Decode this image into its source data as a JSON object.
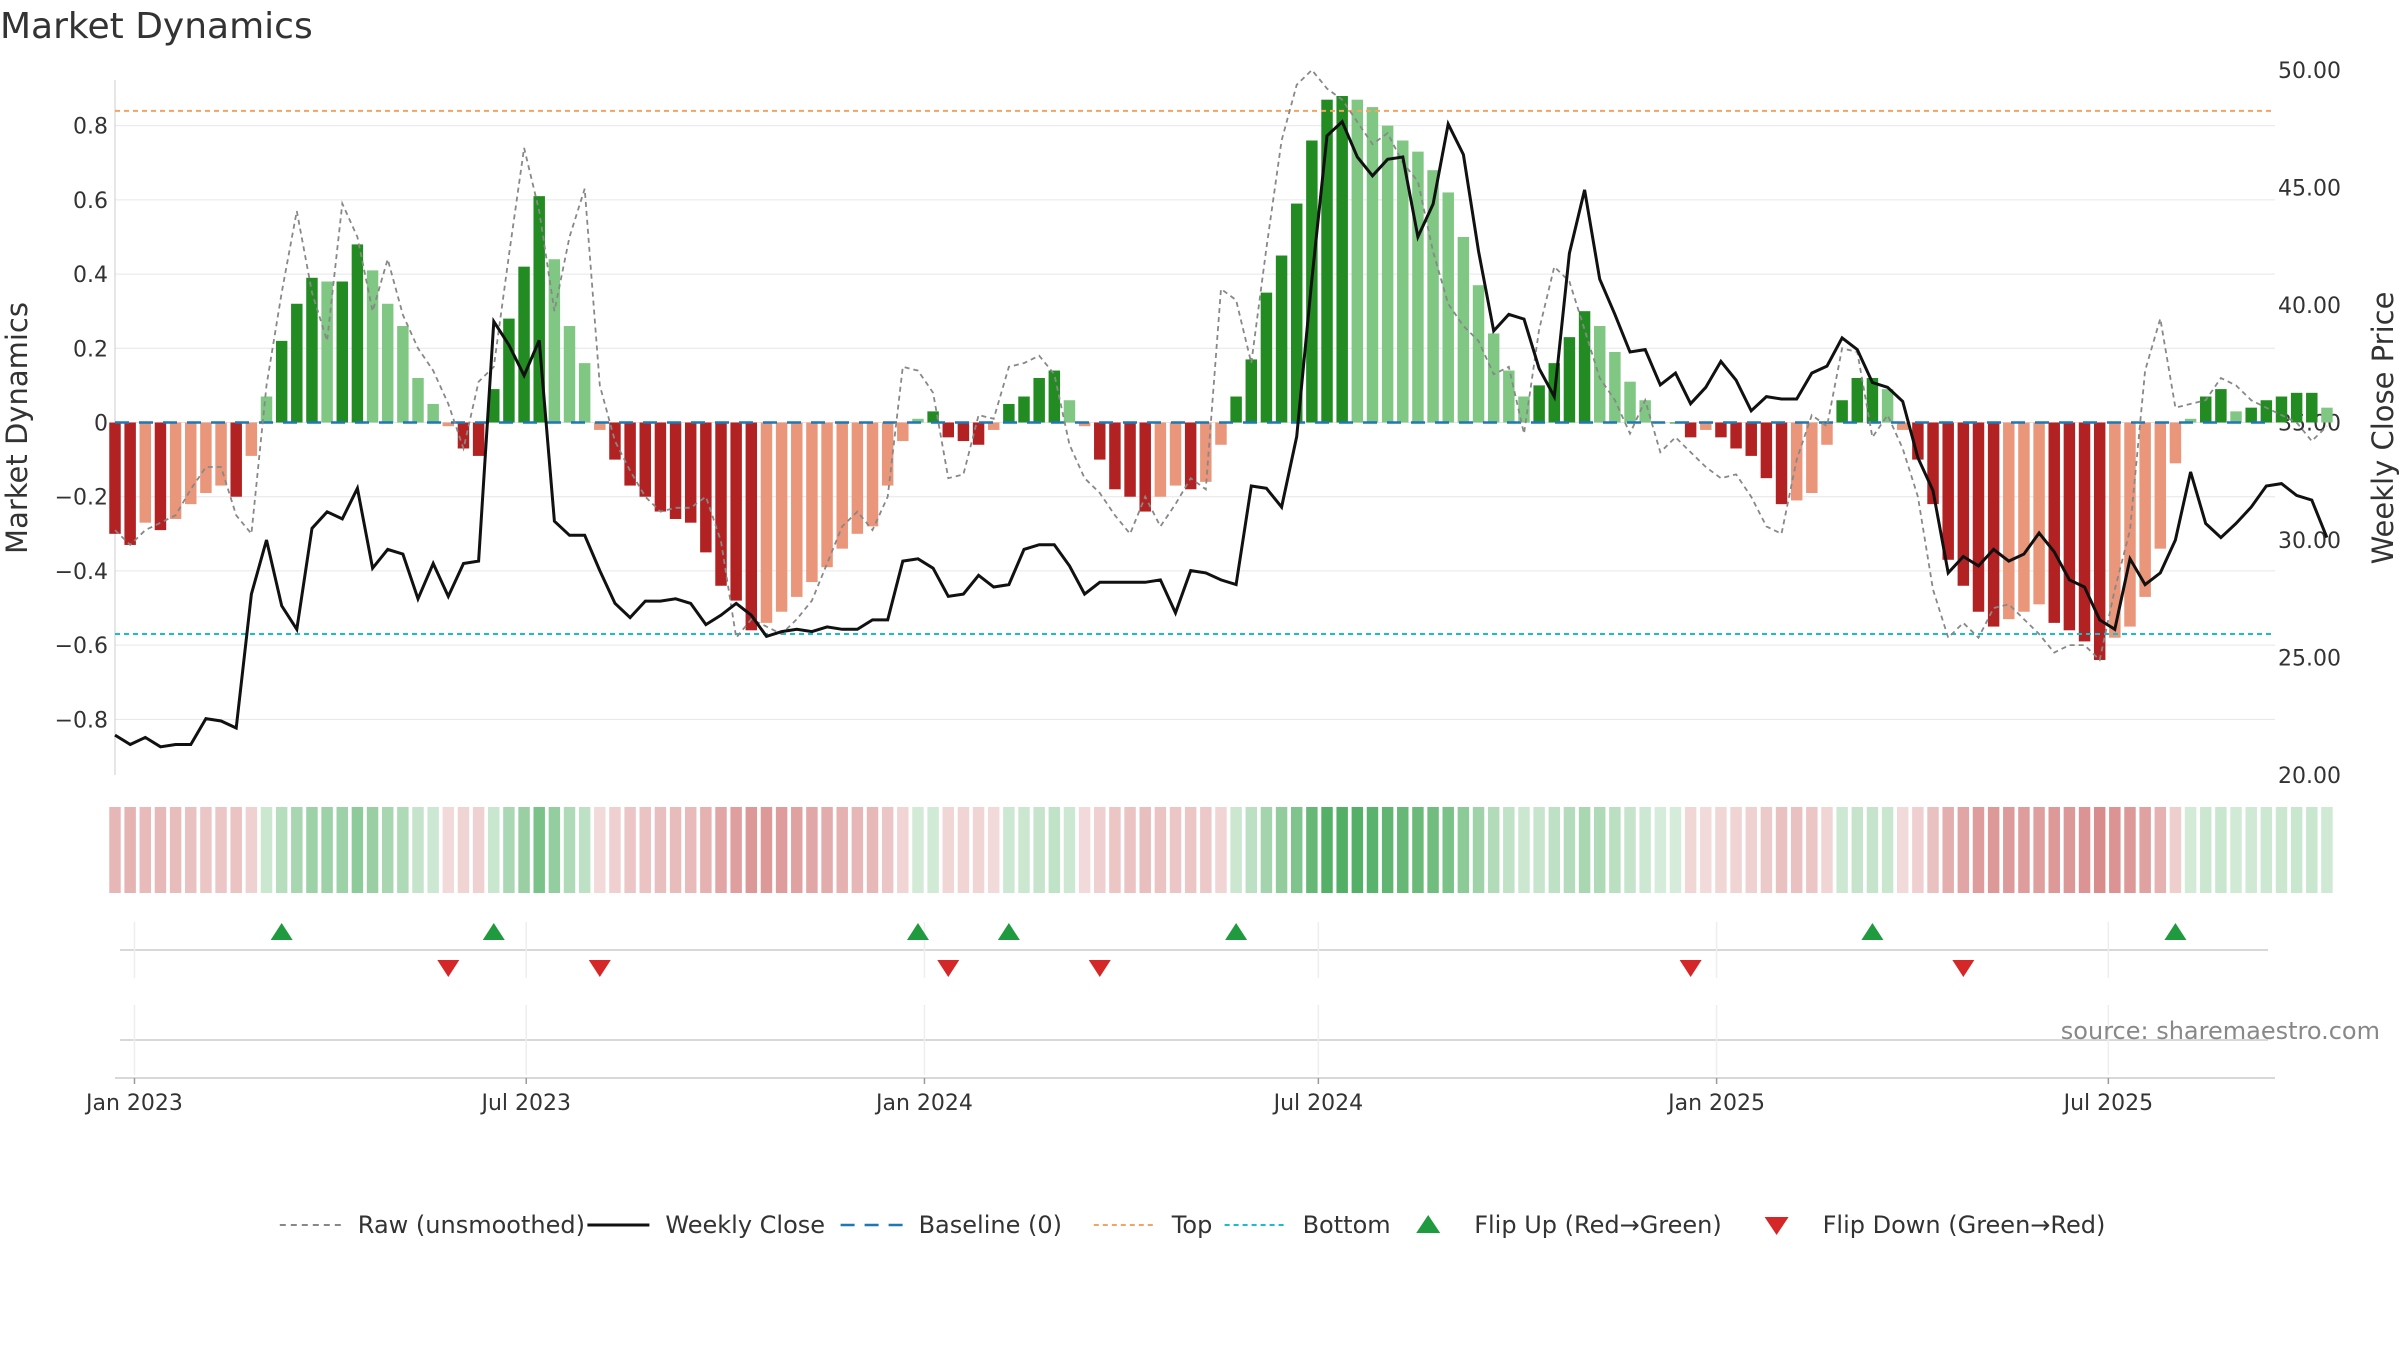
{
  "chart_data": {
    "type": "bar",
    "title": "Market Dynamics",
    "ylabel_left": "Market Dynamics",
    "ylabel_right": "Weekly Close Price",
    "ylim_left": [
      -0.95,
      0.95
    ],
    "ylim_right": [
      20,
      50
    ],
    "yticks_left": [
      -0.8,
      -0.6,
      -0.4,
      -0.2,
      0,
      0.2,
      0.4,
      0.6,
      0.8
    ],
    "yticks_left_labels": [
      "−0.8",
      "−0.6",
      "−0.4",
      "−0.2",
      "0",
      "0.2",
      "0.4",
      "0.6",
      "0.8"
    ],
    "yticks_right": [
      20,
      25,
      30,
      35,
      40,
      45,
      50
    ],
    "yticks_right_labels": [
      "20.00",
      "25.00",
      "30.00",
      "35.00",
      "40.00",
      "45.00",
      "50.00"
    ],
    "x_start": "2022-12-23",
    "x_end": "2025-09-16",
    "xticks": [
      {
        "date": "2023-01-01",
        "label": "Jan 2023"
      },
      {
        "date": "2023-07-01",
        "label": "Jul 2023"
      },
      {
        "date": "2024-01-01",
        "label": "Jan 2024"
      },
      {
        "date": "2024-07-01",
        "label": "Jul 2024"
      },
      {
        "date": "2025-01-01",
        "label": "Jan 2025"
      },
      {
        "date": "2025-07-01",
        "label": "Jul 2025"
      }
    ],
    "week_start": "2022-12-23",
    "week_step_days": 7,
    "top_line": 0.84,
    "bottom_line": -0.57,
    "baseline": 0,
    "dynamics": [
      -0.3,
      -0.33,
      -0.27,
      -0.29,
      -0.26,
      -0.22,
      -0.19,
      -0.17,
      -0.2,
      -0.09,
      0.07,
      0.22,
      0.32,
      0.39,
      0.38,
      0.38,
      0.48,
      0.41,
      0.32,
      0.26,
      0.12,
      0.05,
      -0.01,
      -0.07,
      -0.09,
      0.09,
      0.28,
      0.42,
      0.61,
      0.44,
      0.26,
      0.16,
      -0.02,
      -0.1,
      -0.17,
      -0.2,
      -0.24,
      -0.26,
      -0.27,
      -0.35,
      -0.44,
      -0.48,
      -0.56,
      -0.54,
      -0.51,
      -0.47,
      -0.43,
      -0.39,
      -0.34,
      -0.3,
      -0.28,
      -0.17,
      -0.05,
      0.01,
      0.03,
      -0.04,
      -0.05,
      -0.06,
      -0.02,
      0.05,
      0.07,
      0.12,
      0.14,
      0.06,
      -0.01,
      -0.1,
      -0.18,
      -0.2,
      -0.24,
      -0.2,
      -0.17,
      -0.18,
      -0.16,
      -0.06,
      0.07,
      0.17,
      0.35,
      0.45,
      0.59,
      0.76,
      0.87,
      0.88,
      0.87,
      0.85,
      0.8,
      0.76,
      0.73,
      0.68,
      0.62,
      0.5,
      0.37,
      0.24,
      0.14,
      0.07,
      0.1,
      0.16,
      0.23,
      0.3,
      0.26,
      0.19,
      0.11,
      0.06,
      0.0,
      0.0,
      -0.04,
      -0.02,
      -0.04,
      -0.07,
      -0.09,
      -0.15,
      -0.22,
      -0.21,
      -0.19,
      -0.06,
      0.06,
      0.12,
      0.12,
      0.09,
      -0.02,
      -0.1,
      -0.22,
      -0.37,
      -0.44,
      -0.51,
      -0.55,
      -0.53,
      -0.51,
      -0.49,
      -0.54,
      -0.56,
      -0.59,
      -0.64,
      -0.58,
      -0.55,
      -0.47,
      -0.34,
      -0.11,
      0.01,
      0.07,
      0.09,
      0.03,
      0.04,
      0.06,
      0.07,
      0.08,
      0.08,
      0.04
    ],
    "raw": [
      -0.29,
      -0.33,
      -0.29,
      -0.27,
      -0.25,
      -0.18,
      -0.12,
      -0.12,
      -0.25,
      -0.3,
      0.1,
      0.35,
      0.57,
      0.35,
      0.22,
      0.59,
      0.5,
      0.3,
      0.44,
      0.29,
      0.2,
      0.14,
      0.05,
      -0.07,
      0.11,
      0.15,
      0.45,
      0.74,
      0.57,
      0.3,
      0.5,
      0.63,
      0.1,
      -0.05,
      -0.13,
      -0.2,
      -0.24,
      -0.23,
      -0.23,
      -0.2,
      -0.32,
      -0.58,
      -0.53,
      -0.55,
      -0.57,
      -0.53,
      -0.48,
      -0.38,
      -0.28,
      -0.24,
      -0.29,
      -0.2,
      0.15,
      0.14,
      0.08,
      -0.15,
      -0.14,
      0.02,
      0.01,
      0.15,
      0.16,
      0.18,
      0.13,
      -0.06,
      -0.15,
      -0.19,
      -0.25,
      -0.3,
      -0.2,
      -0.28,
      -0.22,
      -0.15,
      -0.18,
      0.36,
      0.33,
      0.16,
      0.47,
      0.76,
      0.91,
      0.95,
      0.9,
      0.87,
      0.81,
      0.75,
      0.78,
      0.7,
      0.65,
      0.46,
      0.32,
      0.26,
      0.22,
      0.13,
      0.15,
      -0.03,
      0.25,
      0.42,
      0.38,
      0.25,
      0.12,
      0.06,
      -0.03,
      0.06,
      -0.08,
      -0.04,
      -0.08,
      -0.12,
      -0.15,
      -0.14,
      -0.2,
      -0.28,
      -0.3,
      -0.1,
      0.02,
      -0.01,
      0.2,
      0.19,
      -0.04,
      0.02,
      -0.07,
      -0.2,
      -0.45,
      -0.58,
      -0.54,
      -0.58,
      -0.5,
      -0.49,
      -0.53,
      -0.57,
      -0.62,
      -0.6,
      -0.6,
      -0.64,
      -0.45,
      -0.29,
      0.14,
      0.28,
      0.04,
      0.05,
      0.06,
      0.12,
      0.1,
      0.06,
      0.04,
      0.02,
      0.0,
      -0.05,
      -0.01
    ],
    "weekly_close": [
      21.7,
      21.3,
      21.6,
      21.2,
      21.3,
      21.3,
      22.4,
      22.3,
      22.0,
      27.7,
      30.0,
      27.2,
      26.2,
      30.5,
      31.2,
      30.9,
      32.2,
      28.8,
      29.6,
      29.4,
      27.5,
      29.0,
      27.6,
      29.0,
      29.1,
      39.3,
      38.3,
      37.0,
      38.5,
      30.8,
      30.2,
      30.2,
      28.7,
      27.3,
      26.7,
      27.4,
      27.4,
      27.5,
      27.3,
      26.4,
      26.8,
      27.3,
      26.8,
      25.9,
      26.1,
      26.2,
      26.1,
      26.3,
      26.2,
      26.2,
      26.6,
      26.6,
      29.1,
      29.2,
      28.8,
      27.6,
      27.7,
      28.5,
      28.0,
      28.1,
      29.6,
      29.8,
      29.8,
      28.9,
      27.7,
      28.2,
      28.2,
      28.2,
      28.2,
      28.3,
      26.9,
      28.7,
      28.6,
      28.3,
      28.1,
      32.3,
      32.2,
      31.4,
      34.4,
      41.1,
      47.2,
      47.8,
      46.3,
      45.5,
      46.2,
      46.3,
      42.9,
      44.3,
      47.7,
      46.4,
      42.3,
      38.9,
      39.6,
      39.4,
      37.3,
      36.1,
      42.2,
      44.9,
      41.1,
      39.6,
      38.0,
      38.1,
      36.6,
      37.1,
      35.8,
      36.5,
      37.6,
      36.8,
      35.5,
      36.1,
      36.0,
      36.0,
      37.1,
      37.4,
      38.6,
      38.1,
      36.7,
      36.5,
      35.9,
      33.5,
      32.1,
      28.6,
      29.3,
      28.9,
      29.6,
      29.1,
      29.4,
      30.3,
      29.5,
      28.3,
      28.0,
      26.6,
      26.2,
      29.2,
      28.1,
      28.6,
      30.0,
      32.9,
      30.7,
      30.1,
      30.7,
      31.4,
      32.3,
      32.4,
      31.9,
      31.7,
      30.1
    ],
    "flips_up": [
      "2023-03-10",
      "2023-06-16",
      "2023-12-29",
      "2024-02-09",
      "2024-05-24",
      "2025-03-14",
      "2025-08-01"
    ],
    "flips_down": [
      "2023-05-26",
      "2023-08-04",
      "2024-01-12",
      "2024-03-22",
      "2024-12-20",
      "2025-04-25"
    ],
    "colors": {
      "bar_strong_pos": "#228b22",
      "bar_weak_pos": "#81c784",
      "bar_strong_neg": "#b22222",
      "bar_weak_neg": "#e9967a",
      "raw_line": "#888888",
      "close_line": "#111111",
      "baseline": "#1f77b4",
      "top_line": "#f4a460",
      "bottom_line": "#17becf",
      "flip_up": "#1f9a3e",
      "flip_down": "#d62728",
      "strip_pos": "#2e9e44",
      "strip_neg": "#c44e4e"
    },
    "legend": [
      {
        "label": "Raw (unsmoothed)",
        "kind": "dashed-line",
        "color": "#888888"
      },
      {
        "label": "Weekly Close",
        "kind": "solid-line",
        "color": "#111111"
      },
      {
        "label": "Baseline (0)",
        "kind": "dashed-line-wide",
        "color": "#1f77b4"
      },
      {
        "label": "Top",
        "kind": "dotted-line",
        "color": "#f4a460"
      },
      {
        "label": "Bottom",
        "kind": "dotted-line",
        "color": "#17becf"
      },
      {
        "label": "Flip Up (Red→Green)",
        "kind": "triangle-up",
        "color": "#1f9a3e"
      },
      {
        "label": "Flip Down (Green→Red)",
        "kind": "triangle-down",
        "color": "#d62728"
      }
    ],
    "legend_position": "bottom-center",
    "grid": true,
    "source": "source: sharemaestro.com"
  }
}
